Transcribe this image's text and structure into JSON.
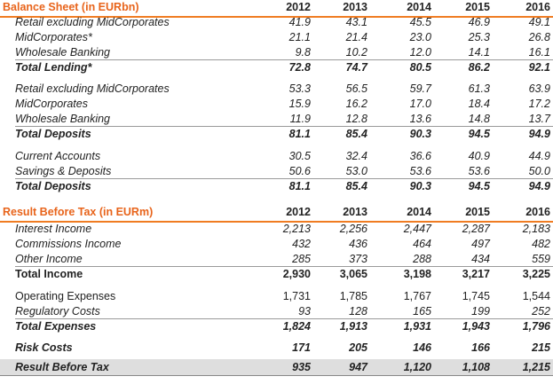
{
  "sections": [
    {
      "title": "Balance Sheet (in EURbn)",
      "years": [
        "2012",
        "2013",
        "2014",
        "2015",
        "2016"
      ],
      "groups": [
        [
          {
            "label": "Retail excluding MidCorporates",
            "values": [
              "41.9",
              "43.1",
              "45.5",
              "46.9",
              "49.1"
            ]
          },
          {
            "label": "MidCorporates*",
            "values": [
              "21.1",
              "21.4",
              "23.0",
              "25.3",
              "26.8"
            ]
          },
          {
            "label": "Wholesale Banking",
            "values": [
              "9.8",
              "10.2",
              "12.0",
              "14.1",
              "16.1"
            ]
          },
          {
            "label": "Total Lending*",
            "values": [
              "72.8",
              "74.7",
              "80.5",
              "86.2",
              "92.1"
            ],
            "total": true
          }
        ],
        [
          {
            "label": "Retail excluding MidCorporates",
            "values": [
              "53.3",
              "56.5",
              "59.7",
              "61.3",
              "63.9"
            ]
          },
          {
            "label": "MidCorporates",
            "values": [
              "15.9",
              "16.2",
              "17.0",
              "18.4",
              "17.2"
            ]
          },
          {
            "label": "Wholesale Banking",
            "values": [
              "11.9",
              "12.8",
              "13.6",
              "14.8",
              "13.7"
            ]
          },
          {
            "label": "Total Deposits",
            "values": [
              "81.1",
              "85.4",
              "90.3",
              "94.5",
              "94.9"
            ],
            "total": true
          }
        ],
        [
          {
            "label": "Current Accounts",
            "values": [
              "30.5",
              "32.4",
              "36.6",
              "40.9",
              "44.9"
            ]
          },
          {
            "label": "Savings & Deposits",
            "values": [
              "50.6",
              "53.0",
              "53.6",
              "53.6",
              "50.0"
            ]
          },
          {
            "label": "Total Deposits",
            "values": [
              "81.1",
              "85.4",
              "90.3",
              "94.5",
              "94.9"
            ],
            "total": true
          }
        ]
      ]
    },
    {
      "title": "Result Before Tax (in EURm)",
      "years": [
        "2012",
        "2013",
        "2014",
        "2015",
        "2016"
      ],
      "groups": [
        [
          {
            "label": "Interest Income",
            "values": [
              "2,213",
              "2,256",
              "2,447",
              "2,287",
              "2,183"
            ]
          },
          {
            "label": "Commissions Income",
            "values": [
              "432",
              "436",
              "464",
              "497",
              "482"
            ]
          },
          {
            "label": "Other Income",
            "values": [
              "285",
              "373",
              "288",
              "434",
              "559"
            ]
          },
          {
            "label": "Total Income",
            "values": [
              "2,930",
              "3,065",
              "3,198",
              "3,217",
              "3,225"
            ],
            "total": true
          }
        ],
        [
          {
            "label": "Operating Expenses",
            "values": [
              "1,731",
              "1,785",
              "1,767",
              "1,745",
              "1,544"
            ]
          },
          {
            "label": "Regulatory Costs",
            "values": [
              "93",
              "128",
              "165",
              "199",
              "252"
            ]
          },
          {
            "label": "Total Expenses",
            "values": [
              "1,824",
              "1,913",
              "1,931",
              "1,943",
              "1,796"
            ],
            "total": true
          }
        ],
        [
          {
            "label": "Risk Costs",
            "values": [
              "171",
              "205",
              "146",
              "166",
              "215"
            ],
            "total": true
          }
        ],
        [
          {
            "label": "Result Before Tax",
            "values": [
              "935",
              "947",
              "1,120",
              "1,108",
              "1,215"
            ],
            "total": true,
            "shaded": true
          }
        ]
      ]
    }
  ]
}
